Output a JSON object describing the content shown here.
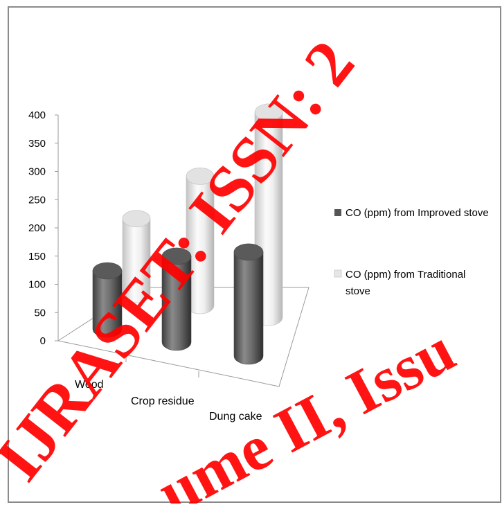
{
  "chart_data": {
    "type": "bar",
    "style": "3d-cylinder",
    "title": "",
    "xlabel": "",
    "ylabel": "",
    "ylim": [
      0,
      400
    ],
    "yticks": [
      "0",
      "50",
      "100",
      "150",
      "200",
      "250",
      "300",
      "350",
      "400"
    ],
    "categories": [
      "Wood",
      "Crop residue",
      "Dung cake"
    ],
    "series": [
      {
        "name": "CO (ppm) from Improved stove",
        "values": [
          125,
          140,
          160
        ],
        "color": "#666666"
      },
      {
        "name": "CO (ppm) from Traditional stove",
        "values": [
          135,
          255,
          365
        ],
        "color": "#e8e8e8"
      }
    ],
    "grid": false,
    "legend_position": "right"
  },
  "legend": {
    "improved_label": "CO (ppm) from Improved stove",
    "traditional_line1": "CO (ppm) from Traditional",
    "traditional_line2": "stove"
  },
  "watermark": {
    "line1": "IJRASET: ISSN: 2",
    "line2": "ume II, Issu"
  }
}
